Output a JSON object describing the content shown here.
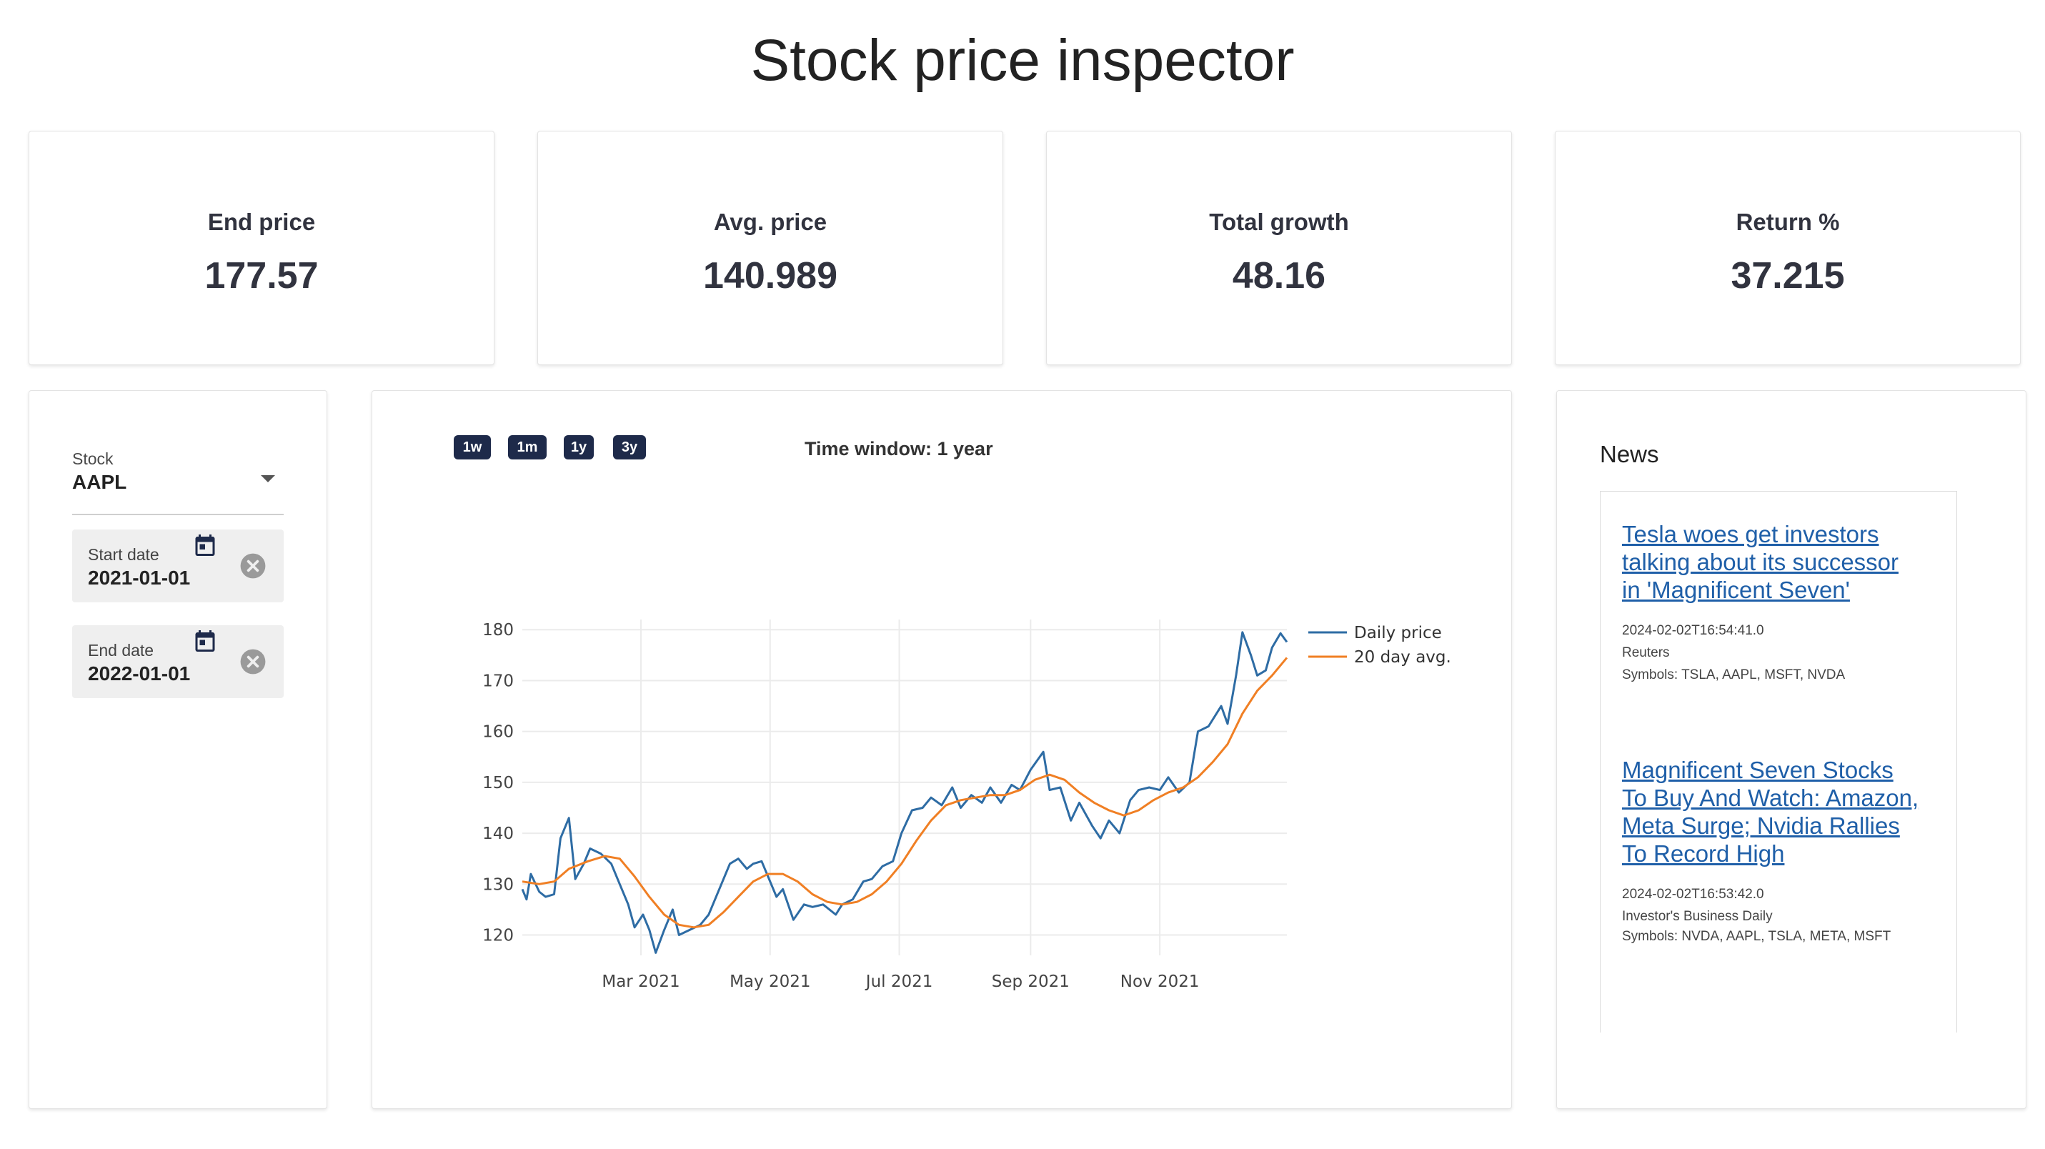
{
  "page": {
    "title": "Stock price inspector"
  },
  "metrics": [
    {
      "label": "End price",
      "value": "177.57"
    },
    {
      "label": "Avg. price",
      "value": "140.989"
    },
    {
      "label": "Total growth",
      "value": "48.16"
    },
    {
      "label": "Return %",
      "value": "37.215"
    }
  ],
  "controls": {
    "stock": {
      "label": "Stock",
      "value": "AAPL"
    },
    "start_date": {
      "label": "Start date",
      "value": "2021-01-01"
    },
    "end_date": {
      "label": "End date",
      "value": "2022-01-01"
    }
  },
  "chart_panel": {
    "buttons": [
      "1w",
      "1m",
      "1y",
      "3y"
    ],
    "time_window_label": "Time window: 1 year"
  },
  "chart_data": {
    "type": "line",
    "title": "",
    "xlabel": "",
    "ylabel": "",
    "ylim": [
      116,
      182
    ],
    "y_ticks": [
      120,
      130,
      140,
      150,
      160,
      170,
      180
    ],
    "x_ticks": [
      {
        "date": "2021-03-01",
        "label": "Mar 2021"
      },
      {
        "date": "2021-05-01",
        "label": "May 2021"
      },
      {
        "date": "2021-07-01",
        "label": "Jul 2021"
      },
      {
        "date": "2021-09-01",
        "label": "Sep 2021"
      },
      {
        "date": "2021-11-01",
        "label": "Nov 2021"
      }
    ],
    "x_range": [
      "2021-01-04",
      "2021-12-31"
    ],
    "grid": true,
    "legend_position": "top-right",
    "colors": {
      "daily": "#2e6ca4",
      "avg": "#f07f24"
    },
    "series": [
      {
        "name": "Daily price",
        "points": [
          [
            "2021-01-04",
            129.0
          ],
          [
            "2021-01-06",
            127.0
          ],
          [
            "2021-01-08",
            132.0
          ],
          [
            "2021-01-12",
            128.5
          ],
          [
            "2021-01-15",
            127.5
          ],
          [
            "2021-01-19",
            128.0
          ],
          [
            "2021-01-22",
            139.0
          ],
          [
            "2021-01-26",
            143.0
          ],
          [
            "2021-01-29",
            131.0
          ],
          [
            "2021-02-02",
            134.0
          ],
          [
            "2021-02-05",
            137.0
          ],
          [
            "2021-02-10",
            136.0
          ],
          [
            "2021-02-15",
            134.0
          ],
          [
            "2021-02-19",
            130.0
          ],
          [
            "2021-02-23",
            126.0
          ],
          [
            "2021-02-26",
            121.5
          ],
          [
            "2021-03-02",
            124.0
          ],
          [
            "2021-03-05",
            121.0
          ],
          [
            "2021-03-08",
            116.5
          ],
          [
            "2021-03-12",
            121.0
          ],
          [
            "2021-03-16",
            125.0
          ],
          [
            "2021-03-19",
            120.0
          ],
          [
            "2021-03-24",
            121.0
          ],
          [
            "2021-03-29",
            122.0
          ],
          [
            "2021-04-02",
            124.0
          ],
          [
            "2021-04-08",
            130.0
          ],
          [
            "2021-04-12",
            134.0
          ],
          [
            "2021-04-16",
            135.0
          ],
          [
            "2021-04-20",
            133.0
          ],
          [
            "2021-04-23",
            134.0
          ],
          [
            "2021-04-27",
            134.5
          ],
          [
            "2021-04-30",
            131.5
          ],
          [
            "2021-05-04",
            127.5
          ],
          [
            "2021-05-07",
            129.0
          ],
          [
            "2021-05-12",
            123.0
          ],
          [
            "2021-05-17",
            126.0
          ],
          [
            "2021-05-21",
            125.5
          ],
          [
            "2021-05-26",
            126.0
          ],
          [
            "2021-06-01",
            124.0
          ],
          [
            "2021-06-04",
            126.0
          ],
          [
            "2021-06-09",
            127.0
          ],
          [
            "2021-06-14",
            130.5
          ],
          [
            "2021-06-18",
            131.0
          ],
          [
            "2021-06-23",
            133.5
          ],
          [
            "2021-06-28",
            134.5
          ],
          [
            "2021-07-02",
            140.0
          ],
          [
            "2021-07-07",
            144.5
          ],
          [
            "2021-07-12",
            145.0
          ],
          [
            "2021-07-16",
            147.0
          ],
          [
            "2021-07-21",
            145.5
          ],
          [
            "2021-07-26",
            149.0
          ],
          [
            "2021-07-30",
            145.0
          ],
          [
            "2021-08-04",
            147.5
          ],
          [
            "2021-08-09",
            146.0
          ],
          [
            "2021-08-13",
            149.0
          ],
          [
            "2021-08-18",
            146.0
          ],
          [
            "2021-08-23",
            149.5
          ],
          [
            "2021-08-27",
            148.5
          ],
          [
            "2021-09-01",
            152.5
          ],
          [
            "2021-09-07",
            156.0
          ],
          [
            "2021-09-10",
            148.5
          ],
          [
            "2021-09-15",
            149.0
          ],
          [
            "2021-09-20",
            142.5
          ],
          [
            "2021-09-24",
            146.0
          ],
          [
            "2021-09-30",
            141.5
          ],
          [
            "2021-10-04",
            139.0
          ],
          [
            "2021-10-08",
            142.5
          ],
          [
            "2021-10-13",
            140.0
          ],
          [
            "2021-10-18",
            146.5
          ],
          [
            "2021-10-22",
            148.5
          ],
          [
            "2021-10-27",
            149.0
          ],
          [
            "2021-11-01",
            148.5
          ],
          [
            "2021-11-05",
            151.0
          ],
          [
            "2021-11-10",
            148.0
          ],
          [
            "2021-11-15",
            150.0
          ],
          [
            "2021-11-19",
            160.0
          ],
          [
            "2021-11-24",
            161.0
          ],
          [
            "2021-11-30",
            165.0
          ],
          [
            "2021-12-03",
            161.5
          ],
          [
            "2021-12-07",
            171.0
          ],
          [
            "2021-12-10",
            179.5
          ],
          [
            "2021-12-14",
            175.0
          ],
          [
            "2021-12-17",
            171.0
          ],
          [
            "2021-12-21",
            172.0
          ],
          [
            "2021-12-24",
            176.5
          ],
          [
            "2021-12-28",
            179.3
          ],
          [
            "2021-12-31",
            177.57
          ]
        ]
      },
      {
        "name": "20 day avg.",
        "points": [
          [
            "2021-01-04",
            130.5
          ],
          [
            "2021-01-12",
            130.0
          ],
          [
            "2021-01-19",
            130.5
          ],
          [
            "2021-01-26",
            133.0
          ],
          [
            "2021-02-04",
            134.5
          ],
          [
            "2021-02-12",
            135.5
          ],
          [
            "2021-02-19",
            135.0
          ],
          [
            "2021-02-26",
            131.5
          ],
          [
            "2021-03-05",
            127.5
          ],
          [
            "2021-03-12",
            124.0
          ],
          [
            "2021-03-19",
            122.0
          ],
          [
            "2021-03-26",
            121.5
          ],
          [
            "2021-04-02",
            122.0
          ],
          [
            "2021-04-09",
            124.5
          ],
          [
            "2021-04-16",
            127.5
          ],
          [
            "2021-04-23",
            130.5
          ],
          [
            "2021-04-30",
            132.0
          ],
          [
            "2021-05-07",
            132.0
          ],
          [
            "2021-05-14",
            130.5
          ],
          [
            "2021-05-21",
            128.0
          ],
          [
            "2021-05-28",
            126.5
          ],
          [
            "2021-06-04",
            126.0
          ],
          [
            "2021-06-11",
            126.5
          ],
          [
            "2021-06-18",
            128.0
          ],
          [
            "2021-06-25",
            130.5
          ],
          [
            "2021-07-02",
            134.0
          ],
          [
            "2021-07-09",
            138.5
          ],
          [
            "2021-07-16",
            142.5
          ],
          [
            "2021-07-23",
            145.5
          ],
          [
            "2021-07-30",
            146.5
          ],
          [
            "2021-08-06",
            147.0
          ],
          [
            "2021-08-13",
            147.5
          ],
          [
            "2021-08-20",
            147.5
          ],
          [
            "2021-08-27",
            148.5
          ],
          [
            "2021-09-03",
            150.5
          ],
          [
            "2021-09-10",
            151.5
          ],
          [
            "2021-09-17",
            150.5
          ],
          [
            "2021-09-24",
            148.0
          ],
          [
            "2021-10-01",
            146.0
          ],
          [
            "2021-10-08",
            144.5
          ],
          [
            "2021-10-15",
            143.5
          ],
          [
            "2021-10-22",
            144.5
          ],
          [
            "2021-10-29",
            146.5
          ],
          [
            "2021-11-05",
            148.0
          ],
          [
            "2021-11-12",
            149.0
          ],
          [
            "2021-11-19",
            151.0
          ],
          [
            "2021-11-26",
            154.0
          ],
          [
            "2021-12-03",
            157.5
          ],
          [
            "2021-12-10",
            163.5
          ],
          [
            "2021-12-17",
            168.0
          ],
          [
            "2021-12-24",
            171.0
          ],
          [
            "2021-12-31",
            174.5
          ]
        ]
      }
    ]
  },
  "news": {
    "title": "News",
    "items": [
      {
        "headline": "Tesla woes get investors talking about its successor in 'Magnificent Seven'",
        "timestamp": "2024-02-02T16:54:41.0",
        "source": "Reuters",
        "symbols": "Symbols: TSLA, AAPL, MSFT, NVDA"
      },
      {
        "headline": "Magnificent Seven Stocks To Buy And Watch: Amazon, Meta Surge; Nvidia Rallies To Record High",
        "timestamp": "2024-02-02T16:53:42.0",
        "source": "Investor's Business Daily",
        "symbols": "Symbols: NVDA, AAPL, TSLA, META, MSFT"
      }
    ]
  }
}
